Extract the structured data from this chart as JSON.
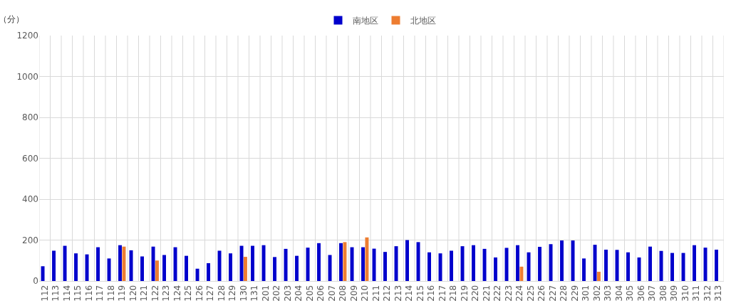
{
  "chart_data": {
    "type": "bar",
    "ylabel": "（分）",
    "categories": [
      "112",
      "113",
      "114",
      "115",
      "116",
      "117",
      "118",
      "119",
      "120",
      "121",
      "122",
      "123",
      "124",
      "125",
      "126",
      "127",
      "128",
      "129",
      "130",
      "131",
      "201",
      "202",
      "203",
      "204",
      "205",
      "206",
      "207",
      "208",
      "209",
      "210",
      "211",
      "212",
      "213",
      "214",
      "215",
      "216",
      "217",
      "218",
      "219",
      "220",
      "221",
      "222",
      "223",
      "224",
      "225",
      "226",
      "227",
      "228",
      "229",
      "301",
      "302",
      "303",
      "304",
      "305",
      "306",
      "307",
      "308",
      "309",
      "310",
      "311",
      "312",
      "313"
    ],
    "series": [
      {
        "name": "南地区",
        "color": "#0000cc",
        "values": [
          72,
          148,
          172,
          135,
          130,
          165,
          110,
          175,
          150,
          120,
          168,
          127,
          165,
          123,
          60,
          87,
          148,
          135,
          172,
          172,
          175,
          117,
          157,
          123,
          163,
          185,
          127,
          185,
          165,
          165,
          158,
          142,
          170,
          200,
          190,
          140,
          135,
          148,
          170,
          175,
          157,
          115,
          162,
          175,
          140,
          167,
          180,
          198,
          198,
          110,
          177,
          153,
          152,
          140,
          115,
          168,
          147,
          137,
          137,
          175,
          163,
          153
        ]
      },
      {
        "name": "北地区",
        "color": "#ed7d31",
        "values": [
          null,
          null,
          null,
          null,
          null,
          null,
          null,
          168,
          null,
          null,
          100,
          null,
          null,
          null,
          null,
          null,
          null,
          null,
          118,
          null,
          null,
          null,
          null,
          null,
          null,
          null,
          null,
          190,
          null,
          213,
          null,
          null,
          null,
          null,
          null,
          null,
          null,
          null,
          null,
          null,
          null,
          null,
          null,
          70,
          null,
          null,
          null,
          null,
          null,
          null,
          45,
          null,
          null,
          null,
          null,
          null,
          null,
          null,
          null,
          null,
          null,
          null
        ]
      }
    ],
    "ylim": [
      0,
      1200
    ],
    "yticks": [
      0,
      200,
      400,
      600,
      800,
      1000,
      1200
    ],
    "grid": true,
    "legend": "top"
  }
}
